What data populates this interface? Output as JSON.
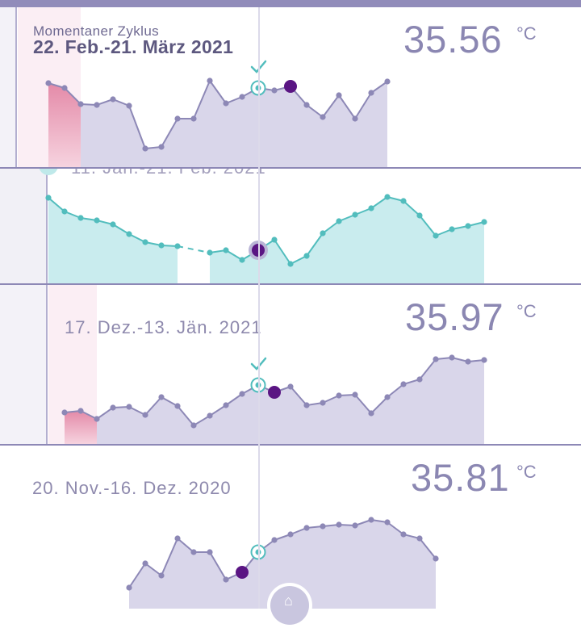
{
  "colors": {
    "accent": "#918cba",
    "line": "#8d88b6",
    "fill": "#d9d6ea",
    "teal_line": "#52bdbd",
    "teal_fill": "#c9ecee",
    "period": "#e48aa8",
    "ovulation": "#5a1583"
  },
  "cycles": [
    {
      "subtitle": "Momentaner Zyklus",
      "title": "22. Feb.-21. März 2021",
      "temperature": "35.56",
      "unit": "°C"
    },
    {
      "title": "11. Jän.-21. Feb. 2021"
    },
    {
      "title": "17. Dez.-13. Jän. 2021",
      "temperature": "35.97",
      "unit": "°C"
    },
    {
      "title": "20. Nov.-16. Dez. 2020",
      "temperature": "35.81",
      "unit": "°C"
    }
  ],
  "icons": {
    "check": "checkmark-icon",
    "home": "home-icon"
  }
}
